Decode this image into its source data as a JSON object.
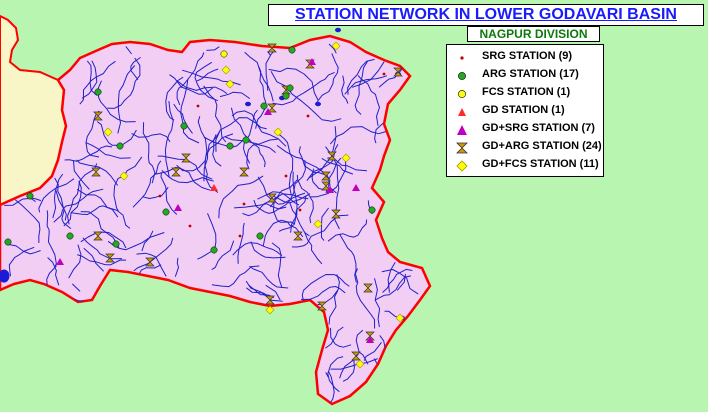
{
  "map": {
    "title": "STATION NETWORK IN LOWER GODAVARI BASIN",
    "subtitle": "NAGPUR DIVISION",
    "colors": {
      "background": "#b8f5b0",
      "basin_fill": "#f2cdf4",
      "neighbour_fill": "#f8f6c6",
      "boundary": "#ff0000",
      "river": "#2020c8",
      "title_text": "#1a1aff",
      "subtitle_text": "#0a7a0a"
    }
  },
  "legend": {
    "items": [
      {
        "label": "SRG STATION (9)",
        "symbol": "dot",
        "color": "#c00000"
      },
      {
        "label": "ARG STATION (17)",
        "symbol": "circle",
        "color": "#22aa22"
      },
      {
        "label": "FCS STATION (1)",
        "symbol": "circle",
        "color": "#ffff00"
      },
      {
        "label": "GD STATION (1)",
        "symbol": "triangle",
        "color": "#ff2a2a"
      },
      {
        "label": "GD+SRG STATION (7)",
        "symbol": "triangle",
        "color": "#c000c0"
      },
      {
        "label": "GD+ARG STATION (24)",
        "symbol": "hourglass",
        "color": "#cc9900"
      },
      {
        "label": "GD+FCS STATION (11)",
        "symbol": "diamond",
        "color": "#ffff00"
      }
    ]
  }
}
